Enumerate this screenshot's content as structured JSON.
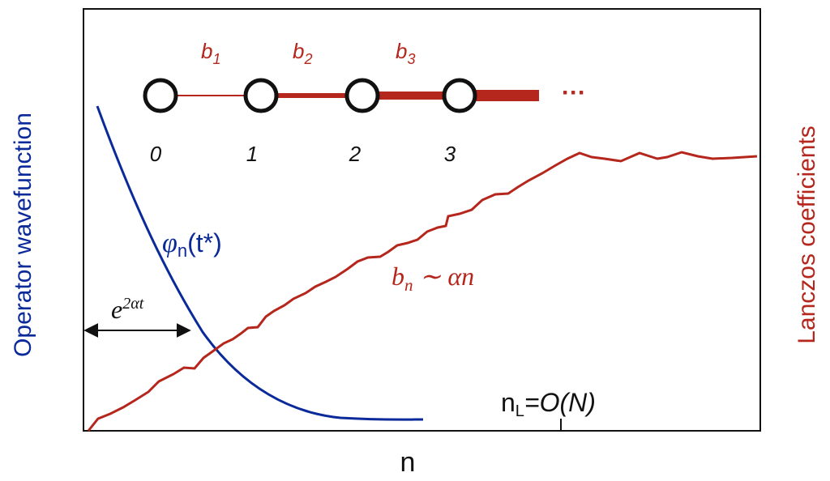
{
  "colors": {
    "wavefunction": "#0b2a9a",
    "lanczos": "#b5261c",
    "frame": "#111111"
  },
  "axes": {
    "xlabel": "n",
    "ylabel_left": "Operator wavefunction",
    "ylabel_right": "Lanczos coefficients"
  },
  "chain": {
    "nodes": [
      "0",
      "1",
      "2",
      "3"
    ],
    "bonds": [
      {
        "label": "b",
        "sub": "1"
      },
      {
        "label": "b",
        "sub": "2"
      },
      {
        "label": "b",
        "sub": "3"
      }
    ],
    "ellipsis": "···"
  },
  "annotations": {
    "phi_symbol": "φ",
    "phi_sub": "n",
    "phi_arg": "(t*)",
    "bn_b": "b",
    "bn_sub": "n",
    "bn_rest": " ∼ αn",
    "exp_base": "e",
    "exp_sup": "2αt",
    "nl_n": "n",
    "nl_sub": "L",
    "nl_rest": "=O(N)"
  }
}
